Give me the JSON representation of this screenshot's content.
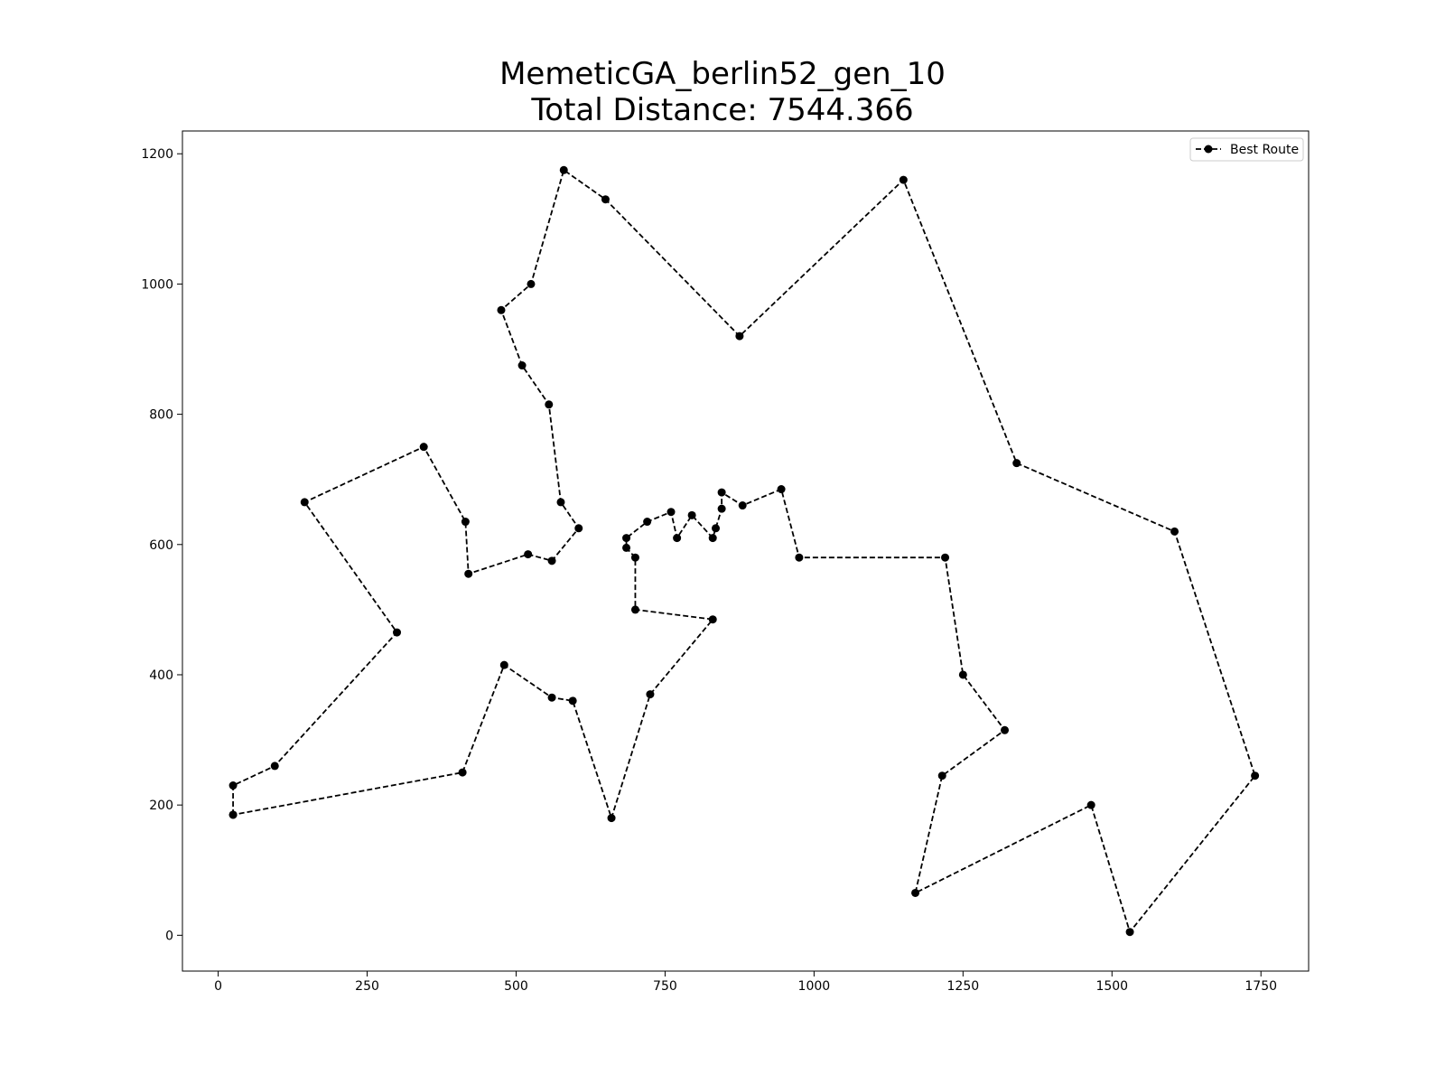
{
  "chart_data": {
    "type": "line",
    "title_line1": "MemeticGA_berlin52_gen_10",
    "title_line2": "Total Distance: 7544.366",
    "xlabel": "",
    "ylabel": "",
    "xlim": [
      -60,
      1830
    ],
    "ylim": [
      -55,
      1235
    ],
    "xticks": [
      0,
      250,
      500,
      750,
      1000,
      1250,
      1500,
      1750
    ],
    "yticks": [
      0,
      200,
      400,
      600,
      800,
      1000,
      1200
    ],
    "grid": false,
    "legend": {
      "position": "upper right",
      "entries": [
        "Best Route"
      ]
    },
    "series": [
      {
        "name": "Best Route",
        "color": "#000000",
        "linestyle": "dashed",
        "marker": "circle",
        "points": [
          [
            25,
            185
          ],
          [
            25,
            230
          ],
          [
            95,
            260
          ],
          [
            300,
            465
          ],
          [
            145,
            665
          ],
          [
            345,
            750
          ],
          [
            415,
            635
          ],
          [
            420,
            555
          ],
          [
            520,
            585
          ],
          [
            560,
            575
          ],
          [
            605,
            625
          ],
          [
            575,
            665
          ],
          [
            555,
            815
          ],
          [
            510,
            875
          ],
          [
            475,
            960
          ],
          [
            525,
            1000
          ],
          [
            580,
            1175
          ],
          [
            650,
            1130
          ],
          [
            875,
            920
          ],
          [
            1150,
            1160
          ],
          [
            1340,
            725
          ],
          [
            1605,
            620
          ],
          [
            1740,
            245
          ],
          [
            1530,
            5
          ],
          [
            1465,
            200
          ],
          [
            1170,
            65
          ],
          [
            1215,
            245
          ],
          [
            1320,
            315
          ],
          [
            1250,
            400
          ],
          [
            1220,
            580
          ],
          [
            975,
            580
          ],
          [
            945,
            685
          ],
          [
            880,
            660
          ],
          [
            845,
            680
          ],
          [
            845,
            655
          ],
          [
            835,
            625
          ],
          [
            830,
            610
          ],
          [
            795,
            645
          ],
          [
            770,
            610
          ],
          [
            760,
            650
          ],
          [
            720,
            635
          ],
          [
            685,
            610
          ],
          [
            685,
            595
          ],
          [
            700,
            580
          ],
          [
            700,
            500
          ],
          [
            830,
            485
          ],
          [
            725,
            370
          ],
          [
            660,
            180
          ],
          [
            595,
            360
          ],
          [
            560,
            365
          ],
          [
            480,
            415
          ],
          [
            410,
            250
          ],
          [
            25,
            185
          ]
        ]
      }
    ]
  }
}
